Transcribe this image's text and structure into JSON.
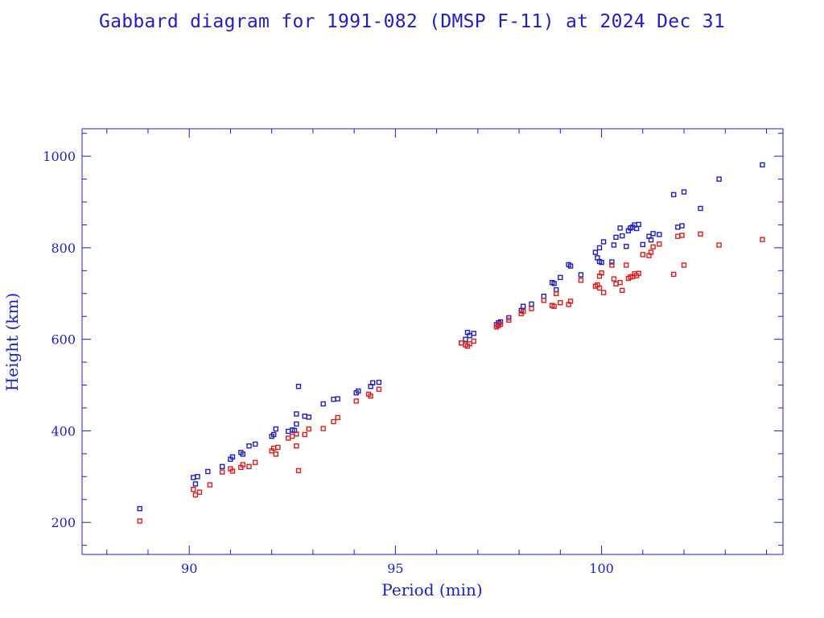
{
  "chart_data": {
    "type": "scatter",
    "title": "Gabbard diagram for 1991-082 (DMSP F-11) at 2024 Dec 31",
    "xlabel": "Period (min)",
    "ylabel": "Height (km)",
    "xlim": [
      87.4,
      104.4
    ],
    "ylim": [
      130,
      1060
    ],
    "x_ticks": [
      90,
      95,
      100
    ],
    "y_ticks": [
      200,
      400,
      600,
      800,
      1000
    ],
    "grid": false,
    "series": [
      {
        "color": "#1f1fbf",
        "points": [
          [
            88.8,
            230
          ],
          [
            90.1,
            298
          ],
          [
            90.15,
            284
          ],
          [
            90.2,
            300
          ],
          [
            90.45,
            311
          ],
          [
            90.8,
            322
          ],
          [
            91.0,
            338
          ],
          [
            91.05,
            343
          ],
          [
            91.25,
            353
          ],
          [
            91.3,
            349
          ],
          [
            91.45,
            367
          ],
          [
            91.6,
            371
          ],
          [
            92.0,
            388
          ],
          [
            92.05,
            392
          ],
          [
            92.1,
            404
          ],
          [
            92.4,
            399
          ],
          [
            92.5,
            402
          ],
          [
            92.55,
            401
          ],
          [
            92.6,
            437
          ],
          [
            92.6,
            415
          ],
          [
            92.65,
            497
          ],
          [
            92.8,
            432
          ],
          [
            92.9,
            430
          ],
          [
            93.25,
            459
          ],
          [
            93.5,
            469
          ],
          [
            93.6,
            470
          ],
          [
            94.05,
            483
          ],
          [
            94.1,
            487
          ],
          [
            94.4,
            497
          ],
          [
            94.45,
            505
          ],
          [
            94.6,
            506
          ],
          [
            96.6,
            592
          ],
          [
            96.7,
            600
          ],
          [
            96.75,
            615
          ],
          [
            96.8,
            608
          ],
          [
            96.9,
            613
          ],
          [
            97.45,
            632
          ],
          [
            97.5,
            636
          ],
          [
            97.55,
            638
          ],
          [
            97.75,
            647
          ],
          [
            98.05,
            663
          ],
          [
            98.1,
            672
          ],
          [
            98.3,
            677
          ],
          [
            98.6,
            694
          ],
          [
            98.8,
            724
          ],
          [
            98.85,
            722
          ],
          [
            98.9,
            708
          ],
          [
            99.0,
            735
          ],
          [
            99.2,
            763
          ],
          [
            99.25,
            760
          ],
          [
            99.5,
            741
          ],
          [
            99.85,
            790
          ],
          [
            99.9,
            778
          ],
          [
            99.95,
            800
          ],
          [
            99.95,
            770
          ],
          [
            100.0,
            768
          ],
          [
            100.05,
            813
          ],
          [
            100.25,
            769
          ],
          [
            100.3,
            806
          ],
          [
            100.35,
            823
          ],
          [
            100.45,
            843
          ],
          [
            100.5,
            826
          ],
          [
            100.6,
            803
          ],
          [
            100.65,
            837
          ],
          [
            100.7,
            843
          ],
          [
            100.75,
            845
          ],
          [
            100.8,
            850
          ],
          [
            100.85,
            842
          ],
          [
            100.9,
            851
          ],
          [
            101.0,
            807
          ],
          [
            101.15,
            825
          ],
          [
            101.2,
            817
          ],
          [
            101.25,
            831
          ],
          [
            101.4,
            829
          ],
          [
            101.75,
            916
          ],
          [
            101.85,
            845
          ],
          [
            101.95,
            848
          ],
          [
            102.0,
            922
          ],
          [
            102.4,
            886
          ],
          [
            102.85,
            950
          ],
          [
            103.9,
            981
          ]
        ]
      },
      {
        "color": "#d81f1f",
        "points": [
          [
            88.8,
            203
          ],
          [
            90.1,
            272
          ],
          [
            90.15,
            260
          ],
          [
            90.25,
            266
          ],
          [
            90.5,
            282
          ],
          [
            90.8,
            310
          ],
          [
            91.0,
            317
          ],
          [
            91.05,
            312
          ],
          [
            91.25,
            320
          ],
          [
            91.3,
            326
          ],
          [
            91.45,
            322
          ],
          [
            91.6,
            331
          ],
          [
            92.0,
            356
          ],
          [
            92.05,
            362
          ],
          [
            92.1,
            349
          ],
          [
            92.15,
            364
          ],
          [
            92.4,
            384
          ],
          [
            92.5,
            388
          ],
          [
            92.6,
            393
          ],
          [
            92.6,
            367
          ],
          [
            92.65,
            313
          ],
          [
            92.8,
            392
          ],
          [
            92.9,
            404
          ],
          [
            93.25,
            405
          ],
          [
            93.5,
            420
          ],
          [
            93.6,
            429
          ],
          [
            94.05,
            465
          ],
          [
            94.35,
            480
          ],
          [
            94.4,
            476
          ],
          [
            94.6,
            491
          ],
          [
            96.6,
            592
          ],
          [
            96.7,
            588
          ],
          [
            96.75,
            585
          ],
          [
            96.8,
            590
          ],
          [
            96.9,
            596
          ],
          [
            97.45,
            627
          ],
          [
            97.5,
            630
          ],
          [
            97.55,
            633
          ],
          [
            97.75,
            642
          ],
          [
            98.05,
            656
          ],
          [
            98.1,
            661
          ],
          [
            98.3,
            667
          ],
          [
            98.6,
            685
          ],
          [
            98.8,
            674
          ],
          [
            98.85,
            672
          ],
          [
            98.9,
            700
          ],
          [
            99.0,
            680
          ],
          [
            99.2,
            676
          ],
          [
            99.25,
            683
          ],
          [
            99.5,
            729
          ],
          [
            99.85,
            716
          ],
          [
            99.9,
            719
          ],
          [
            99.95,
            712
          ],
          [
            99.95,
            738
          ],
          [
            100.0,
            745
          ],
          [
            100.05,
            702
          ],
          [
            100.25,
            762
          ],
          [
            100.3,
            732
          ],
          [
            100.35,
            721
          ],
          [
            100.45,
            724
          ],
          [
            100.5,
            707
          ],
          [
            100.6,
            762
          ],
          [
            100.65,
            733
          ],
          [
            100.7,
            736
          ],
          [
            100.75,
            737
          ],
          [
            100.8,
            743
          ],
          [
            100.85,
            739
          ],
          [
            100.9,
            744
          ],
          [
            101.0,
            785
          ],
          [
            101.15,
            783
          ],
          [
            101.2,
            790
          ],
          [
            101.25,
            802
          ],
          [
            101.4,
            808
          ],
          [
            101.75,
            742
          ],
          [
            101.85,
            825
          ],
          [
            101.95,
            827
          ],
          [
            102.0,
            762
          ],
          [
            102.4,
            830
          ],
          [
            102.85,
            806
          ],
          [
            103.9,
            818
          ]
        ]
      }
    ]
  }
}
